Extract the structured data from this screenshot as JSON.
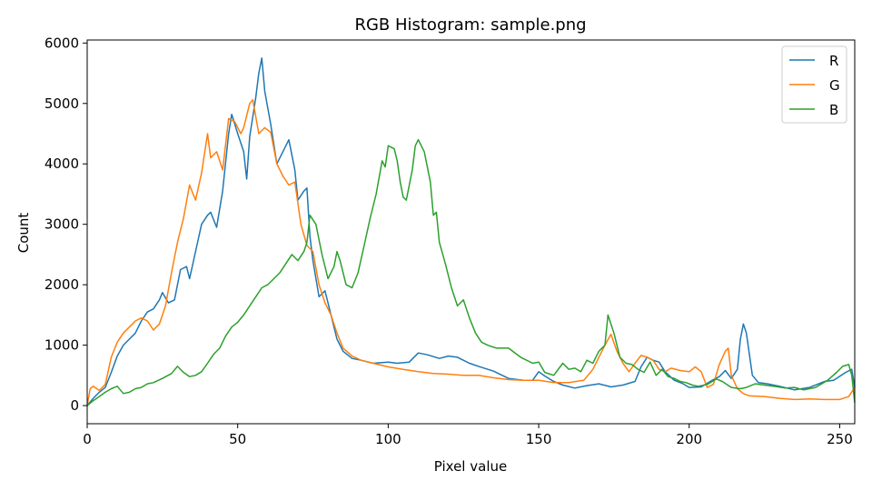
{
  "chart_data": {
    "type": "line",
    "title": "RGB Histogram: sample.png",
    "xlabel": "Pixel value",
    "ylabel": "Count",
    "xlim": [
      0,
      255
    ],
    "ylim": [
      -300,
      6050
    ],
    "xticks": [
      0,
      50,
      100,
      150,
      200,
      250
    ],
    "yticks": [
      0,
      1000,
      2000,
      3000,
      4000,
      5000,
      6000
    ],
    "grid": false,
    "legend_position": "top-right",
    "series": [
      {
        "name": "R",
        "color": "#1f77b4",
        "points": [
          [
            0,
            0
          ],
          [
            2,
            120
          ],
          [
            4,
            220
          ],
          [
            6,
            300
          ],
          [
            8,
            550
          ],
          [
            10,
            820
          ],
          [
            12,
            1000
          ],
          [
            14,
            1100
          ],
          [
            16,
            1200
          ],
          [
            18,
            1400
          ],
          [
            20,
            1550
          ],
          [
            22,
            1600
          ],
          [
            24,
            1750
          ],
          [
            25,
            1870
          ],
          [
            27,
            1700
          ],
          [
            29,
            1750
          ],
          [
            31,
            2250
          ],
          [
            33,
            2300
          ],
          [
            34,
            2100
          ],
          [
            36,
            2550
          ],
          [
            38,
            3000
          ],
          [
            40,
            3150
          ],
          [
            41,
            3200
          ],
          [
            43,
            2950
          ],
          [
            45,
            3550
          ],
          [
            47,
            4500
          ],
          [
            48,
            4820
          ],
          [
            50,
            4500
          ],
          [
            52,
            4200
          ],
          [
            53,
            3750
          ],
          [
            54,
            4450
          ],
          [
            56,
            5100
          ],
          [
            57,
            5500
          ],
          [
            58,
            5750
          ],
          [
            59,
            5200
          ],
          [
            61,
            4650
          ],
          [
            63,
            4000
          ],
          [
            65,
            4200
          ],
          [
            67,
            4400
          ],
          [
            69,
            3900
          ],
          [
            70,
            3400
          ],
          [
            72,
            3550
          ],
          [
            73,
            3600
          ],
          [
            74,
            2800
          ],
          [
            75,
            2400
          ],
          [
            77,
            1800
          ],
          [
            79,
            1900
          ],
          [
            81,
            1500
          ],
          [
            83,
            1100
          ],
          [
            85,
            900
          ],
          [
            88,
            780
          ],
          [
            91,
            750
          ],
          [
            95,
            700
          ],
          [
            100,
            720
          ],
          [
            103,
            700
          ],
          [
            107,
            720
          ],
          [
            110,
            870
          ],
          [
            113,
            840
          ],
          [
            117,
            780
          ],
          [
            120,
            820
          ],
          [
            123,
            800
          ],
          [
            127,
            700
          ],
          [
            130,
            650
          ],
          [
            135,
            570
          ],
          [
            140,
            450
          ],
          [
            145,
            420
          ],
          [
            148,
            420
          ],
          [
            150,
            560
          ],
          [
            152,
            490
          ],
          [
            155,
            400
          ],
          [
            158,
            340
          ],
          [
            162,
            290
          ],
          [
            166,
            330
          ],
          [
            170,
            360
          ],
          [
            174,
            310
          ],
          [
            178,
            340
          ],
          [
            182,
            400
          ],
          [
            184,
            640
          ],
          [
            186,
            800
          ],
          [
            188,
            750
          ],
          [
            190,
            720
          ],
          [
            192,
            560
          ],
          [
            195,
            420
          ],
          [
            198,
            360
          ],
          [
            200,
            300
          ],
          [
            204,
            310
          ],
          [
            208,
            430
          ],
          [
            210,
            480
          ],
          [
            212,
            580
          ],
          [
            214,
            450
          ],
          [
            216,
            600
          ],
          [
            217,
            1100
          ],
          [
            218,
            1350
          ],
          [
            219,
            1200
          ],
          [
            221,
            500
          ],
          [
            223,
            380
          ],
          [
            226,
            360
          ],
          [
            230,
            320
          ],
          [
            235,
            260
          ],
          [
            240,
            300
          ],
          [
            245,
            400
          ],
          [
            248,
            420
          ],
          [
            252,
            550
          ],
          [
            254,
            600
          ],
          [
            255,
            300
          ]
        ]
      },
      {
        "name": "G",
        "color": "#ff7f0e",
        "points": [
          [
            0,
            0
          ],
          [
            1,
            280
          ],
          [
            2,
            320
          ],
          [
            4,
            250
          ],
          [
            6,
            350
          ],
          [
            8,
            800
          ],
          [
            10,
            1050
          ],
          [
            12,
            1200
          ],
          [
            14,
            1300
          ],
          [
            16,
            1400
          ],
          [
            18,
            1450
          ],
          [
            20,
            1400
          ],
          [
            22,
            1250
          ],
          [
            24,
            1350
          ],
          [
            26,
            1650
          ],
          [
            28,
            2200
          ],
          [
            30,
            2700
          ],
          [
            32,
            3100
          ],
          [
            34,
            3650
          ],
          [
            36,
            3400
          ],
          [
            38,
            3850
          ],
          [
            40,
            4500
          ],
          [
            41,
            4100
          ],
          [
            43,
            4200
          ],
          [
            45,
            3900
          ],
          [
            47,
            4750
          ],
          [
            49,
            4700
          ],
          [
            51,
            4500
          ],
          [
            52,
            4600
          ],
          [
            54,
            5000
          ],
          [
            55,
            5060
          ],
          [
            57,
            4500
          ],
          [
            59,
            4600
          ],
          [
            61,
            4520
          ],
          [
            63,
            4000
          ],
          [
            65,
            3800
          ],
          [
            67,
            3650
          ],
          [
            69,
            3700
          ],
          [
            71,
            3000
          ],
          [
            73,
            2650
          ],
          [
            75,
            2550
          ],
          [
            77,
            2000
          ],
          [
            79,
            1700
          ],
          [
            81,
            1500
          ],
          [
            83,
            1200
          ],
          [
            85,
            950
          ],
          [
            88,
            820
          ],
          [
            91,
            750
          ],
          [
            95,
            700
          ],
          [
            100,
            640
          ],
          [
            105,
            600
          ],
          [
            110,
            560
          ],
          [
            115,
            530
          ],
          [
            120,
            520
          ],
          [
            125,
            500
          ],
          [
            130,
            500
          ],
          [
            135,
            460
          ],
          [
            140,
            430
          ],
          [
            145,
            420
          ],
          [
            150,
            420
          ],
          [
            155,
            380
          ],
          [
            160,
            380
          ],
          [
            165,
            420
          ],
          [
            168,
            600
          ],
          [
            170,
            800
          ],
          [
            172,
            1000
          ],
          [
            174,
            1180
          ],
          [
            176,
            900
          ],
          [
            178,
            700
          ],
          [
            180,
            560
          ],
          [
            182,
            700
          ],
          [
            184,
            830
          ],
          [
            186,
            800
          ],
          [
            188,
            750
          ],
          [
            190,
            600
          ],
          [
            192,
            560
          ],
          [
            194,
            620
          ],
          [
            197,
            580
          ],
          [
            200,
            560
          ],
          [
            202,
            640
          ],
          [
            204,
            560
          ],
          [
            206,
            300
          ],
          [
            208,
            350
          ],
          [
            210,
            680
          ],
          [
            212,
            900
          ],
          [
            213,
            950
          ],
          [
            214,
            500
          ],
          [
            216,
            280
          ],
          [
            218,
            200
          ],
          [
            220,
            160
          ],
          [
            225,
            150
          ],
          [
            230,
            120
          ],
          [
            235,
            100
          ],
          [
            240,
            110
          ],
          [
            245,
            100
          ],
          [
            250,
            100
          ],
          [
            253,
            150
          ],
          [
            255,
            300
          ]
        ]
      },
      {
        "name": "B",
        "color": "#2ca02c",
        "points": [
          [
            0,
            0
          ],
          [
            2,
            80
          ],
          [
            4,
            150
          ],
          [
            6,
            220
          ],
          [
            8,
            280
          ],
          [
            10,
            320
          ],
          [
            12,
            200
          ],
          [
            14,
            220
          ],
          [
            16,
            280
          ],
          [
            18,
            300
          ],
          [
            20,
            360
          ],
          [
            22,
            380
          ],
          [
            25,
            450
          ],
          [
            28,
            530
          ],
          [
            30,
            650
          ],
          [
            32,
            550
          ],
          [
            34,
            480
          ],
          [
            36,
            500
          ],
          [
            38,
            560
          ],
          [
            40,
            700
          ],
          [
            42,
            850
          ],
          [
            44,
            950
          ],
          [
            46,
            1150
          ],
          [
            48,
            1300
          ],
          [
            50,
            1380
          ],
          [
            52,
            1500
          ],
          [
            54,
            1650
          ],
          [
            56,
            1800
          ],
          [
            58,
            1950
          ],
          [
            60,
            2000
          ],
          [
            62,
            2100
          ],
          [
            64,
            2200
          ],
          [
            66,
            2350
          ],
          [
            68,
            2500
          ],
          [
            70,
            2400
          ],
          [
            72,
            2550
          ],
          [
            73,
            2700
          ],
          [
            74,
            3150
          ],
          [
            76,
            3000
          ],
          [
            78,
            2500
          ],
          [
            80,
            2100
          ],
          [
            82,
            2300
          ],
          [
            83,
            2550
          ],
          [
            84,
            2400
          ],
          [
            86,
            2000
          ],
          [
            88,
            1950
          ],
          [
            90,
            2200
          ],
          [
            92,
            2650
          ],
          [
            94,
            3100
          ],
          [
            96,
            3500
          ],
          [
            98,
            4050
          ],
          [
            99,
            3950
          ],
          [
            100,
            4300
          ],
          [
            102,
            4250
          ],
          [
            103,
            4050
          ],
          [
            104,
            3700
          ],
          [
            105,
            3450
          ],
          [
            106,
            3400
          ],
          [
            108,
            3900
          ],
          [
            109,
            4300
          ],
          [
            110,
            4400
          ],
          [
            112,
            4200
          ],
          [
            114,
            3700
          ],
          [
            115,
            3150
          ],
          [
            116,
            3200
          ],
          [
            117,
            2700
          ],
          [
            119,
            2350
          ],
          [
            121,
            1950
          ],
          [
            123,
            1650
          ],
          [
            125,
            1750
          ],
          [
            127,
            1450
          ],
          [
            129,
            1200
          ],
          [
            131,
            1050
          ],
          [
            133,
            1000
          ],
          [
            136,
            950
          ],
          [
            140,
            950
          ],
          [
            144,
            800
          ],
          [
            148,
            700
          ],
          [
            150,
            720
          ],
          [
            152,
            550
          ],
          [
            155,
            500
          ],
          [
            158,
            700
          ],
          [
            160,
            600
          ],
          [
            162,
            620
          ],
          [
            164,
            560
          ],
          [
            166,
            750
          ],
          [
            168,
            700
          ],
          [
            170,
            900
          ],
          [
            172,
            1000
          ],
          [
            173,
            1500
          ],
          [
            175,
            1200
          ],
          [
            177,
            800
          ],
          [
            179,
            700
          ],
          [
            181,
            680
          ],
          [
            183,
            600
          ],
          [
            185,
            550
          ],
          [
            187,
            720
          ],
          [
            189,
            500
          ],
          [
            191,
            600
          ],
          [
            193,
            480
          ],
          [
            195,
            450
          ],
          [
            197,
            400
          ],
          [
            199,
            380
          ],
          [
            201,
            340
          ],
          [
            203,
            320
          ],
          [
            206,
            350
          ],
          [
            209,
            440
          ],
          [
            211,
            400
          ],
          [
            214,
            300
          ],
          [
            217,
            280
          ],
          [
            219,
            300
          ],
          [
            222,
            360
          ],
          [
            225,
            340
          ],
          [
            228,
            320
          ],
          [
            232,
            290
          ],
          [
            235,
            300
          ],
          [
            238,
            260
          ],
          [
            242,
            300
          ],
          [
            246,
            420
          ],
          [
            249,
            550
          ],
          [
            251,
            650
          ],
          [
            253,
            680
          ],
          [
            254,
            500
          ],
          [
            255,
            50
          ]
        ]
      }
    ]
  }
}
